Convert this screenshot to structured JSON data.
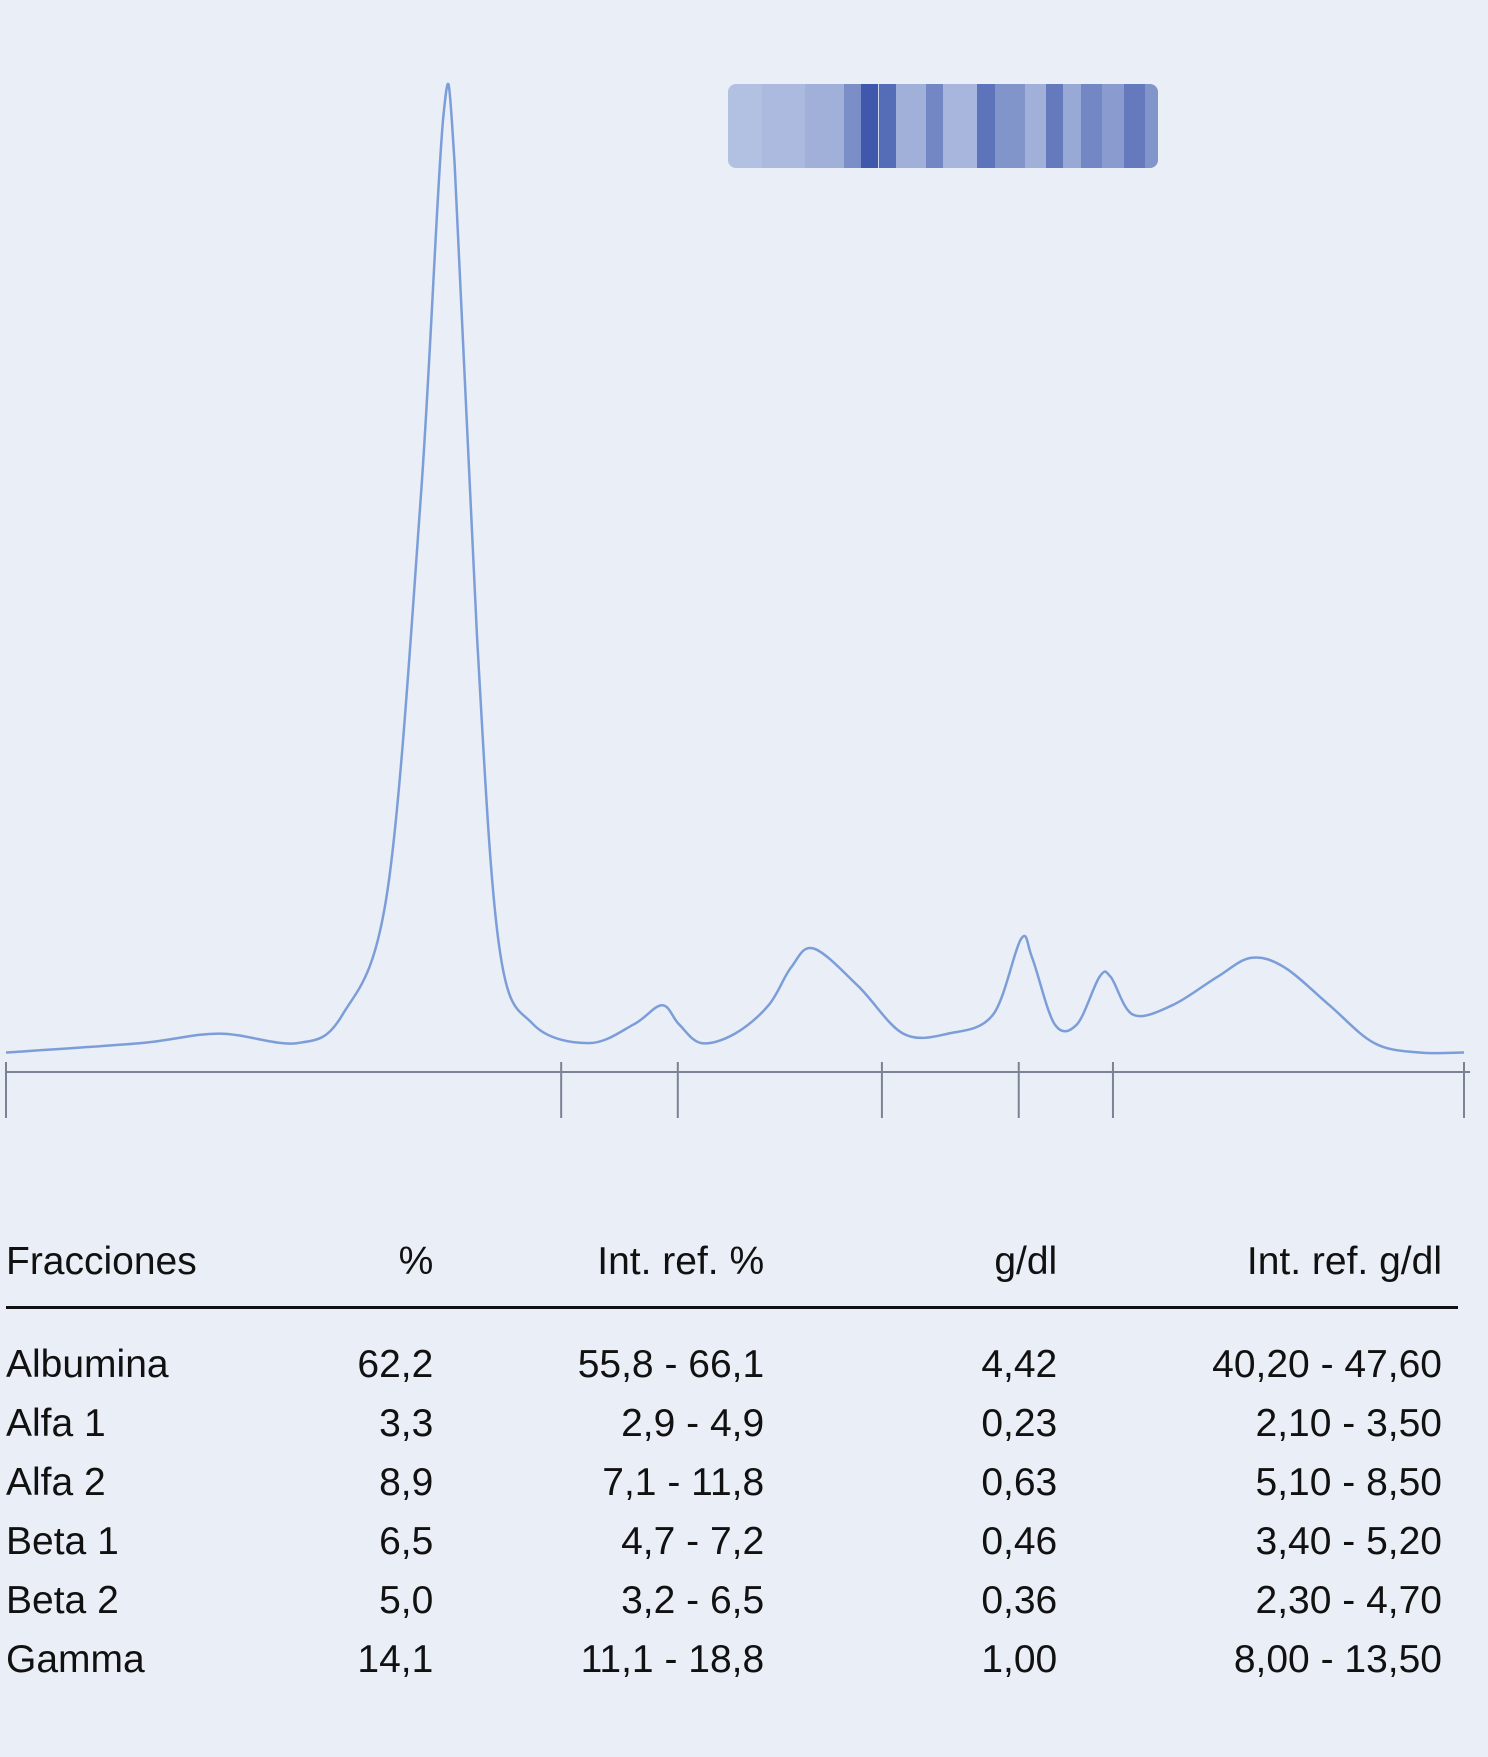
{
  "chart_data": {
    "type": "line",
    "title": "",
    "xlabel": "",
    "ylabel": "",
    "fraction_names": [
      "Albumina",
      "Alfa 1",
      "Alfa 2",
      "Beta 1",
      "Beta 2",
      "Gamma"
    ],
    "curve": [
      [
        0,
        0.01
      ],
      [
        120,
        0.02
      ],
      [
        190,
        0.03
      ],
      [
        260,
        0.02
      ],
      [
        300,
        0.05
      ],
      [
        340,
        0.18
      ],
      [
        370,
        0.6
      ],
      [
        390,
        1.0
      ],
      [
        400,
        0.95
      ],
      [
        420,
        0.45
      ],
      [
        440,
        0.12
      ],
      [
        470,
        0.04
      ],
      [
        520,
        0.02
      ],
      [
        560,
        0.04
      ],
      [
        585,
        0.06
      ],
      [
        600,
        0.04
      ],
      [
        620,
        0.02
      ],
      [
        650,
        0.03
      ],
      [
        680,
        0.06
      ],
      [
        700,
        0.1
      ],
      [
        720,
        0.12
      ],
      [
        760,
        0.08
      ],
      [
        800,
        0.03
      ],
      [
        840,
        0.03
      ],
      [
        880,
        0.05
      ],
      [
        905,
        0.13
      ],
      [
        915,
        0.11
      ],
      [
        935,
        0.04
      ],
      [
        955,
        0.04
      ],
      [
        975,
        0.09
      ],
      [
        985,
        0.09
      ],
      [
        1005,
        0.05
      ],
      [
        1040,
        0.06
      ],
      [
        1080,
        0.09
      ],
      [
        1110,
        0.11
      ],
      [
        1140,
        0.1
      ],
      [
        1180,
        0.06
      ],
      [
        1220,
        0.02
      ],
      [
        1260,
        0.01
      ],
      [
        1300,
        0.01
      ]
    ],
    "fraction_boundaries": [
      0,
      495,
      599,
      781,
      903,
      987,
      1300
    ],
    "line_color": "#7c9ed8"
  },
  "gel_bands": [
    {
      "pos": 0.0,
      "intensity": 0.18
    },
    {
      "pos": 0.08,
      "intensity": 0.22
    },
    {
      "pos": 0.18,
      "intensity": 0.3
    },
    {
      "pos": 0.27,
      "intensity": 0.55
    },
    {
      "pos": 0.31,
      "intensity": 0.95
    },
    {
      "pos": 0.35,
      "intensity": 0.8
    },
    {
      "pos": 0.39,
      "intensity": 0.3
    },
    {
      "pos": 0.46,
      "intensity": 0.6
    },
    {
      "pos": 0.5,
      "intensity": 0.25
    },
    {
      "pos": 0.58,
      "intensity": 0.75
    },
    {
      "pos": 0.62,
      "intensity": 0.5
    },
    {
      "pos": 0.69,
      "intensity": 0.3
    },
    {
      "pos": 0.74,
      "intensity": 0.7
    },
    {
      "pos": 0.78,
      "intensity": 0.35
    },
    {
      "pos": 0.82,
      "intensity": 0.6
    },
    {
      "pos": 0.87,
      "intensity": 0.45
    },
    {
      "pos": 0.92,
      "intensity": 0.7
    },
    {
      "pos": 0.97,
      "intensity": 0.5
    }
  ],
  "table": {
    "headers": [
      "Fracciones",
      "%",
      "Int. ref. %",
      "g/dl",
      "Int. ref. g/dl"
    ],
    "rows": [
      [
        "Albumina",
        "62,2",
        "55,8 - 66,1",
        "4,42",
        "40,20 - 47,60"
      ],
      [
        "Alfa 1",
        "3,3",
        "2,9 - 4,9",
        "0,23",
        "2,10 - 3,50"
      ],
      [
        "Alfa 2",
        "8,9",
        "7,1 - 11,8",
        "0,63",
        "5,10 - 8,50"
      ],
      [
        "Beta 1",
        "6,5",
        "4,7 - 7,2",
        "0,46",
        "3,40 - 5,20"
      ],
      [
        "Beta 2",
        "5,0",
        "3,2 - 6,5",
        "0,36",
        "2,30 - 4,70"
      ],
      [
        "Gamma",
        "14,1",
        "11,1 - 18,8",
        "1,00",
        "8,00 - 13,50"
      ]
    ]
  }
}
